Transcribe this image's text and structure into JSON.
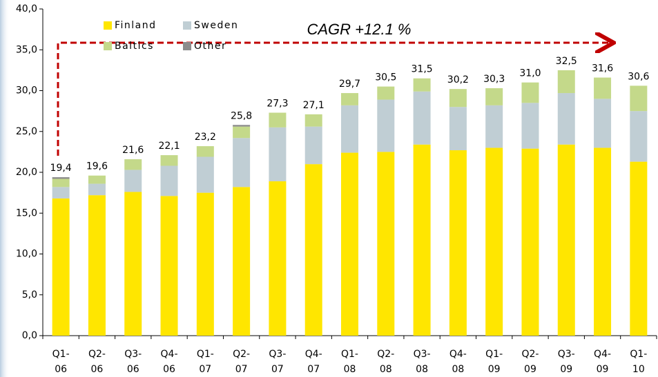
{
  "chart_data": {
    "type": "stacked_bar",
    "annotation": "CAGR +12.1 %",
    "categories": [
      "Q1-\n06",
      "Q2-\n06",
      "Q3-\n06",
      "Q4-\n06",
      "Q1-\n07",
      "Q2-\n07",
      "Q3-\n07",
      "Q4-\n07",
      "Q1-\n08",
      "Q2-\n08",
      "Q3-\n08",
      "Q4-\n08",
      "Q1-\n09",
      "Q2-\n09",
      "Q3-\n09",
      "Q4-\n09",
      "Q1-\n10"
    ],
    "series": [
      {
        "name": "Finland",
        "color": "#ffe600",
        "values": [
          16.8,
          17.2,
          17.6,
          17.1,
          17.5,
          18.2,
          18.9,
          21.0,
          22.4,
          22.5,
          23.4,
          22.7,
          23.0,
          22.9,
          23.4,
          23.0,
          21.3
        ]
      },
      {
        "name": "Sweden",
        "color": "#c0ced4",
        "values": [
          1.4,
          1.4,
          2.7,
          3.7,
          4.4,
          6.0,
          6.6,
          4.6,
          5.8,
          6.4,
          6.5,
          5.3,
          5.2,
          5.6,
          6.3,
          6.0,
          6.2
        ]
      },
      {
        "name": "Baltics",
        "color": "#c4d98a",
        "values": [
          1.0,
          1.0,
          1.3,
          1.3,
          1.3,
          1.4,
          1.8,
          1.5,
          1.5,
          1.6,
          1.6,
          2.2,
          2.1,
          2.5,
          2.8,
          2.6,
          3.1
        ]
      },
      {
        "name": "Other",
        "color": "#8c8c8c",
        "values": [
          0.2,
          0,
          0,
          0,
          0,
          0.2,
          0,
          0,
          0,
          0,
          0,
          0,
          0,
          0,
          0,
          0,
          0
        ]
      }
    ],
    "totals": {
      "values": [
        19.4,
        19.6,
        21.6,
        22.1,
        23.2,
        25.8,
        27.3,
        27.1,
        29.7,
        30.5,
        31.5,
        30.2,
        30.3,
        31.0,
        32.5,
        31.6,
        30.6
      ],
      "value_labels": [
        "19,4",
        "19,6",
        "21,6",
        "22,1",
        "23,2",
        "25,8",
        "27,3",
        "27,1",
        "29,7",
        "30,5",
        "31,5",
        "30,2",
        "30,3",
        "31,0",
        "32,5",
        "31,6",
        "30,6"
      ]
    },
    "ylim": [
      0,
      40
    ],
    "yticks": [
      {
        "value": 0,
        "label": "0,0"
      },
      {
        "value": 5,
        "label": "5,0"
      },
      {
        "value": 10,
        "label": "10,0"
      },
      {
        "value": 15,
        "label": "15,0"
      },
      {
        "value": 20,
        "label": "20,0"
      },
      {
        "value": 25,
        "label": "25,0"
      },
      {
        "value": 30,
        "label": "30,0"
      },
      {
        "value": 35,
        "label": "35,0"
      },
      {
        "value": 40,
        "label": "40,0"
      }
    ]
  }
}
